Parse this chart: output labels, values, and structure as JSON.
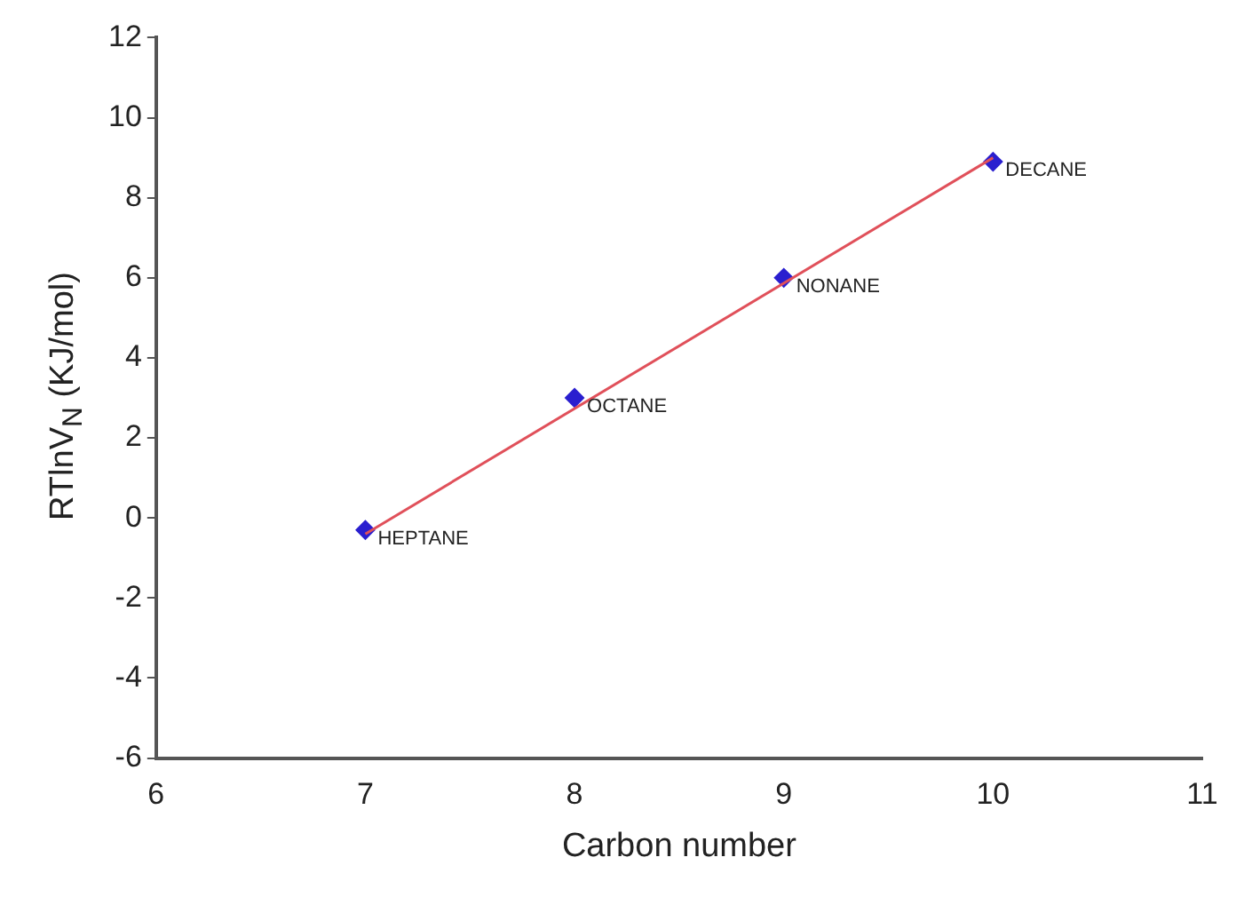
{
  "chart_data": {
    "type": "scatter",
    "xlabel": "Carbon number",
    "ylabel": "RTlnV$_{N}$ (KJ/mol)",
    "x": [
      7,
      8,
      9,
      10
    ],
    "series": [
      {
        "color": "#2a1fcf",
        "values": [
          -0.3,
          3.0,
          6.0,
          8.9
        ],
        "marker": "diamond"
      },
      {
        "type": "line",
        "color": "#e0505a",
        "x": [
          7,
          10
        ],
        "values": [
          -0.4,
          9.0
        ],
        "marker": "none"
      }
    ],
    "annotations": [
      {
        "text": "HEPTANE",
        "x": 7,
        "y": -0.3
      },
      {
        "text": "OCTANE",
        "x": 8,
        "y": 3.0
      },
      {
        "text": "NONANE",
        "x": 9,
        "y": 6.0
      },
      {
        "text": "DECANE",
        "x": 10,
        "y": 8.9
      }
    ],
    "xlim": [
      6,
      11
    ],
    "xticks": [
      6,
      7,
      8,
      9,
      10,
      11
    ],
    "ylim": [
      -6,
      12
    ],
    "yticks": [
      -6,
      -4,
      -2,
      0,
      2,
      4,
      6,
      8,
      10,
      12
    ],
    "grid": false,
    "legend": false
  }
}
